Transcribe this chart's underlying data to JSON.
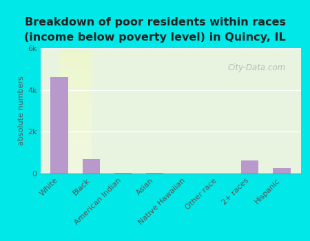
{
  "categories": [
    "White",
    "Black",
    "American Indian",
    "Asian",
    "Native Hawaiian",
    "Other race",
    "2+ races",
    "Hispanic"
  ],
  "values": [
    4600,
    700,
    25,
    30,
    5,
    5,
    640,
    265
  ],
  "bar_color": "#b899cc",
  "title_line1": "Breakdown of poor residents within races",
  "title_line2": "(income below poverty level) in Quincy, IL",
  "ylabel": "absolute numbers",
  "ylim": [
    0,
    6000
  ],
  "yticks": [
    0,
    2000,
    4000,
    6000
  ],
  "ytick_labels": [
    "0",
    "2k",
    "4k",
    "6k"
  ],
  "background_color": "#00e8e8",
  "plot_bg_color": "#e8f4e0",
  "title_fontsize": 11.5,
  "label_fontsize": 8,
  "ylabel_fontsize": 8,
  "watermark": "City-Data.com"
}
